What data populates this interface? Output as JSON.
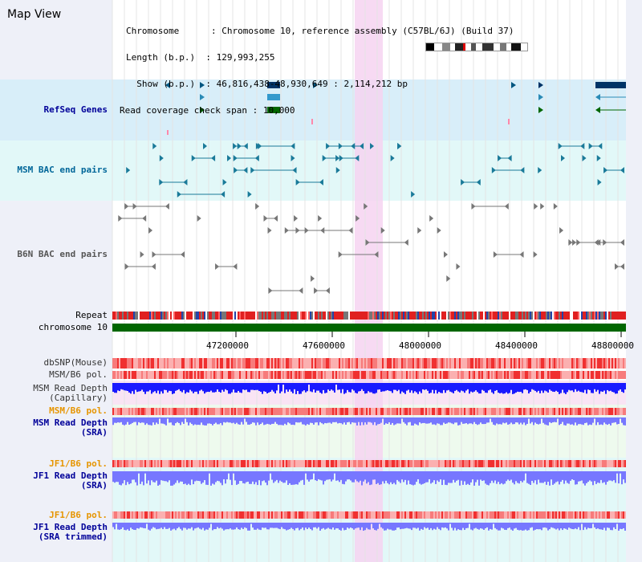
{
  "title": "Map View",
  "header": {
    "rows": [
      {
        "key": "Chromosome      ",
        "value": ": Chromosome 10, reference assembly (C57BL/6J) (Build 37)"
      },
      {
        "key": "Length (b.p.)  ",
        "value": ": 129,993,255"
      },
      {
        "key": "  Show (b.p.)  ",
        "value": ": 46,816,438-48,930,649 : 2,114,212 bp"
      },
      {
        "key": "Read coverage check span",
        "value": " : 10,000"
      }
    ]
  },
  "tracks": {
    "refseq": {
      "label": "RefSeq Genes",
      "color": "#000099"
    },
    "msm_bac": {
      "label": "MSM BAC end pairs",
      "color": "#006699"
    },
    "b6n_bac": {
      "label": "B6N BAC end pairs",
      "color": "#555555"
    },
    "repeat": {
      "label": "Repeat",
      "color": "#000000"
    },
    "chromosome": {
      "label": "chromosome 10",
      "color": "#000000"
    },
    "dbsnp": {
      "label": "dbSNP(Mouse)",
      "color": "#333333"
    },
    "msm_b6_pol": {
      "label": "MSM/B6 pol.",
      "color": "#333333"
    },
    "msm_depth_cap": {
      "label_line1": "MSM Read Depth",
      "label_line2": "(Capillary)",
      "color": "#333333"
    },
    "msm_b6_pol_sra": {
      "label": "MSM/B6 pol.",
      "color": "#e69500"
    },
    "msm_depth_sra": {
      "label_line1": "MSM Read Depth",
      "label_line2": "(SRA)",
      "color": "#000099"
    },
    "jf1_b6_pol": {
      "label": "JF1/B6 pol.",
      "color": "#e69500"
    },
    "jf1_depth_sra": {
      "label_line1": "JF1 Read Depth",
      "label_line2": "(SRA)",
      "color": "#000099"
    },
    "jf1_b6_pol_trim": {
      "label": "JF1/B6 pol.",
      "color": "#e69500"
    },
    "jf1_depth_trim": {
      "label_line1": "JF1 Read Depth",
      "label_line2": "(SRA trimmed)",
      "color": "#000099"
    }
  },
  "axis": {
    "ticks": [
      "47200000",
      "47600000",
      "48000000",
      "48400000",
      "48800000"
    ]
  },
  "colors": {
    "highlight": "#f5d0f0",
    "refseq_band": "#d6eefa",
    "msm_bac_band": "#e0f8f8",
    "chromosome_bar": "#006600",
    "polymorphism": "#ff4444",
    "depth_capillary": "#1a1aff",
    "depth_sra": "#7777ff"
  }
}
